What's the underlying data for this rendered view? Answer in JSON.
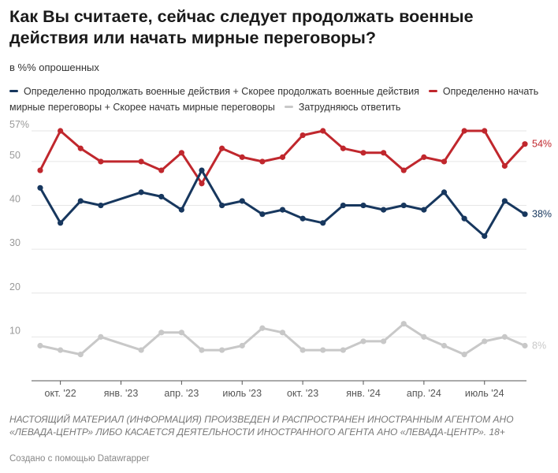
{
  "header": {
    "title": "Как Вы считаете, сейчас следует продолжать военные действия или начать мирные переговоры?",
    "subtitle": "в %% опрошенных"
  },
  "footer": {
    "note": "НАСТОЯЩИЙ МАТЕРИАЛ (ИНФОРМАЦИЯ) ПРОИЗВЕДЕН И РАСПРОСТРАНЕН ИНОСТРАННЫМ АГЕНТОМ АНО «ЛЕВАДА-ЦЕНТР» ЛИБО КАСАЕТСЯ ДЕЯТЕЛЬНОСТИ ИНОСТРАННОГО АГЕНТА АНО «ЛЕВАДА-ЦЕНТР». 18+",
    "credit": "Создано с помощью Datawrapper"
  },
  "chart_data": {
    "type": "line",
    "y_ticks": [
      {
        "value": 10,
        "label": "10"
      },
      {
        "value": 20,
        "label": "20"
      },
      {
        "value": 30,
        "label": "30"
      },
      {
        "value": 40,
        "label": "40"
      },
      {
        "value": 50,
        "label": "50"
      },
      {
        "value": 57,
        "label": "57%"
      }
    ],
    "ylim": [
      0,
      57
    ],
    "x_ticks": [
      {
        "x": "2022-10",
        "label": "окт. '22"
      },
      {
        "x": "2023-01",
        "label": "янв. '23"
      },
      {
        "x": "2023-04",
        "label": "апр. '23"
      },
      {
        "x": "2023-07",
        "label": "июль '23"
      },
      {
        "x": "2023-10",
        "label": "окт. '23"
      },
      {
        "x": "2024-01",
        "label": "янв. '24"
      },
      {
        "x": "2024-04",
        "label": "апр. '24"
      },
      {
        "x": "2024-07",
        "label": "июль '24"
      }
    ],
    "x": [
      "2022-09",
      "2022-10",
      "2022-11",
      "2022-12",
      "2023-02",
      "2023-03",
      "2023-04",
      "2023-05",
      "2023-06",
      "2023-07",
      "2023-08",
      "2023-09",
      "2023-10",
      "2023-11",
      "2023-12",
      "2024-01",
      "2024-02",
      "2024-03",
      "2024-04",
      "2024-05",
      "2024-06",
      "2024-07",
      "2024-08",
      "2024-09"
    ],
    "legend_position": "top",
    "grid": true,
    "series": [
      {
        "name": "Определенно продолжать военные действия + Скорее продолжать военные действия",
        "color": "#17375e",
        "values": [
          44,
          36,
          41,
          40,
          43,
          42,
          39,
          48,
          40,
          41,
          38,
          39,
          37,
          36,
          40,
          40,
          39,
          40,
          39,
          43,
          37,
          33,
          41,
          38
        ],
        "end_label": "38%"
      },
      {
        "name": "Определенно начать мирные переговоры + Скорее начать мирные переговоры",
        "color": "#c0272d",
        "values": [
          48,
          57,
          53,
          50,
          50,
          48,
          52,
          45,
          53,
          51,
          50,
          51,
          56,
          57,
          53,
          52,
          52,
          48,
          51,
          50,
          57,
          57,
          49,
          54
        ],
        "end_label": "54%"
      },
      {
        "name": "Затрудняюсь ответить",
        "color": "#c8c8c8",
        "values": [
          8,
          7,
          6,
          10,
          7,
          11,
          11,
          7,
          7,
          8,
          12,
          11,
          7,
          7,
          7,
          9,
          9,
          13,
          10,
          8,
          6,
          9,
          10,
          8
        ],
        "end_label": "8%"
      }
    ]
  }
}
